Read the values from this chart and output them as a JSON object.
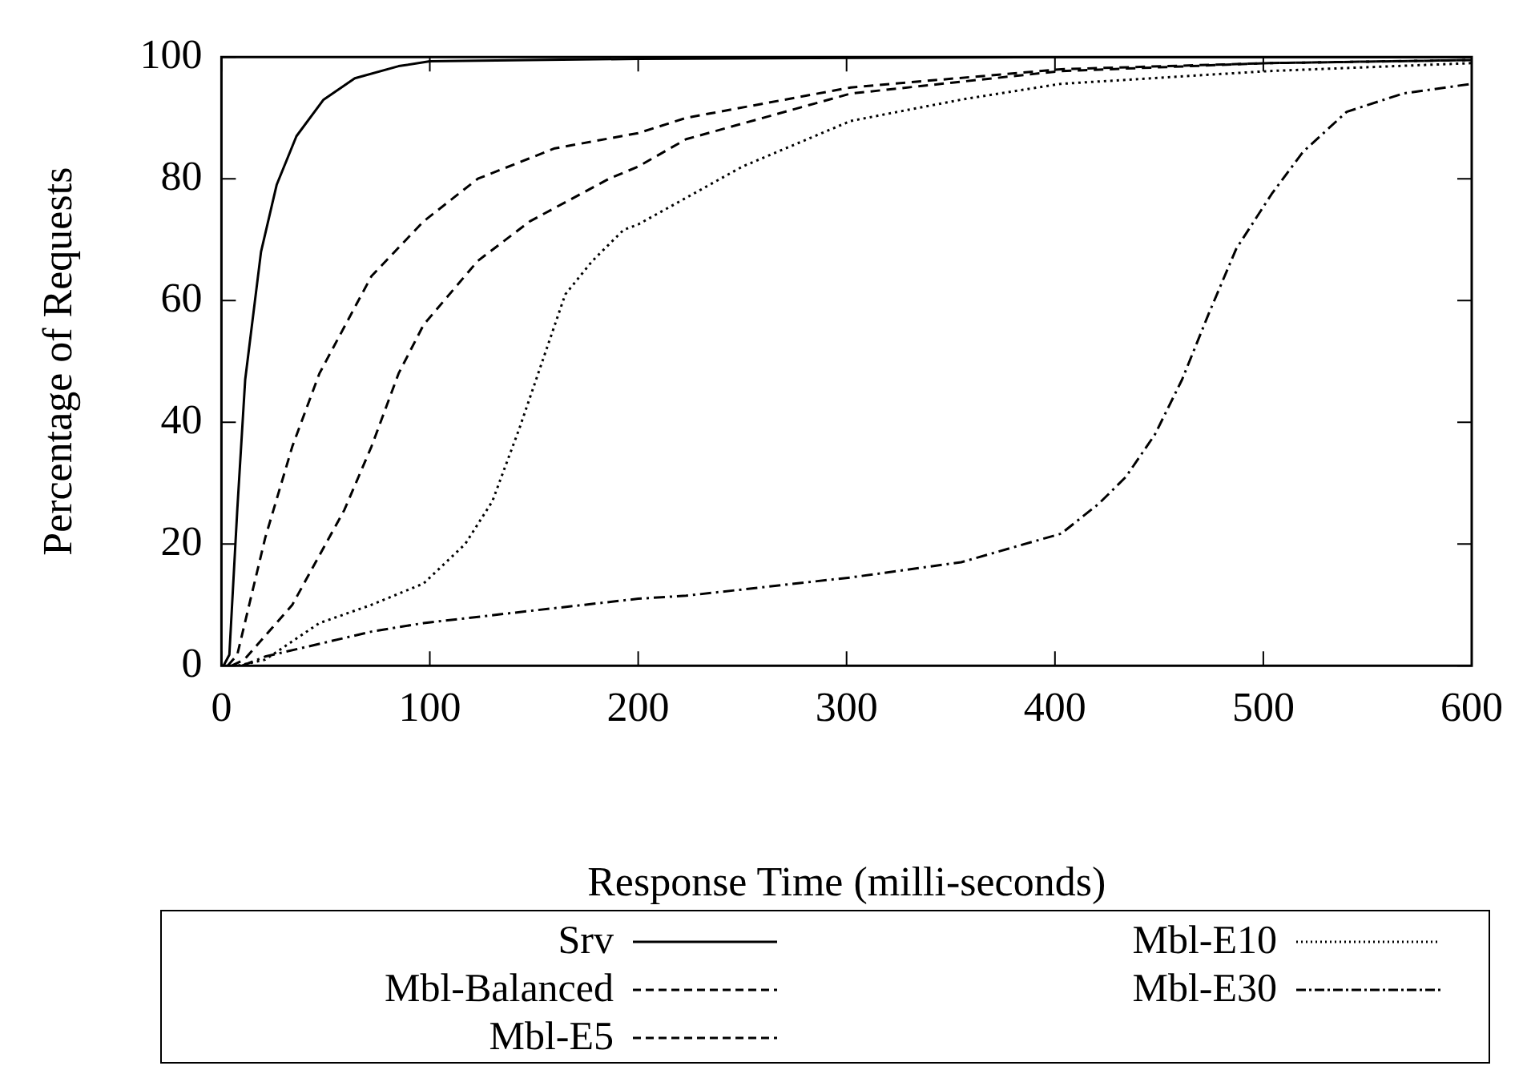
{
  "chart_data": {
    "type": "line",
    "xlabel": "Response Time (milli-seconds)",
    "ylabel": "Percentage of Requests",
    "xlim": [
      0,
      600
    ],
    "xticks": [
      0,
      100,
      200,
      300,
      400,
      500,
      600
    ],
    "ylim": [
      0,
      100
    ],
    "yticks": [
      0,
      20,
      40,
      60,
      80,
      100
    ],
    "grid": false,
    "legend": "bottom",
    "marker": "none",
    "series": [
      {
        "name": "Srv",
        "color": "#000000",
        "line_style": "solid",
        "x": [
          1,
          3.8,
          7.6,
          11.4,
          19,
          26.5,
          36,
          49,
          64,
          85,
          100,
          200,
          400,
          600
        ],
        "values": [
          0,
          1.8,
          25.6,
          47,
          68,
          79,
          87,
          93,
          96.5,
          98.5,
          99.3,
          99.7,
          100,
          100
        ]
      },
      {
        "name": "Mbl-Balanced",
        "color": "#000000",
        "line_style": "dashed",
        "x": [
          3,
          7.6,
          21,
          34,
          47,
          72,
          97,
          123,
          160,
          200,
          223,
          302,
          403,
          503,
          600
        ],
        "values": [
          0,
          1.8,
          21,
          36,
          48,
          64,
          73,
          80,
          85,
          87.5,
          90,
          95,
          98,
          99,
          99.5
        ]
      },
      {
        "name": "Mbl-E5",
        "color": "#000000",
        "line_style": "dashed",
        "x": [
          5,
          11,
          34,
          59,
          72,
          85,
          97,
          123,
          148,
          186,
          200,
          223,
          302,
          403,
          503,
          600
        ],
        "values": [
          0,
          1,
          10,
          25.6,
          36,
          48,
          56,
          66.5,
          73,
          80,
          82,
          86.5,
          94,
          97.7,
          99,
          99.5
        ]
      },
      {
        "name": "Mbl-E10",
        "color": "#000000",
        "line_style": "dotted",
        "x": [
          8,
          21,
          47,
          72,
          97,
          117,
          130,
          143,
          153,
          165,
          178,
          193,
          200,
          250,
          302,
          355,
          403,
          503,
          600
        ],
        "values": [
          0,
          1,
          7,
          10,
          13.5,
          20,
          27,
          39,
          49,
          61,
          66.5,
          71.6,
          72.5,
          82,
          89.5,
          93,
          95.6,
          97.7,
          99
        ]
      },
      {
        "name": "Mbl-E30",
        "color": "#000000",
        "line_style": "dashdot",
        "x": [
          10,
          21,
          72,
          97,
          148,
          200,
          223,
          302,
          355,
          403,
          421,
          434,
          448,
          461,
          474,
          487,
          504,
          519,
          540,
          567,
          600
        ],
        "values": [
          0,
          1.5,
          5.6,
          7,
          9,
          11,
          11.5,
          14.5,
          17,
          21.7,
          26.6,
          31,
          38,
          47,
          58,
          68.5,
          77.5,
          84.4,
          91,
          94,
          95.6
        ]
      }
    ]
  }
}
